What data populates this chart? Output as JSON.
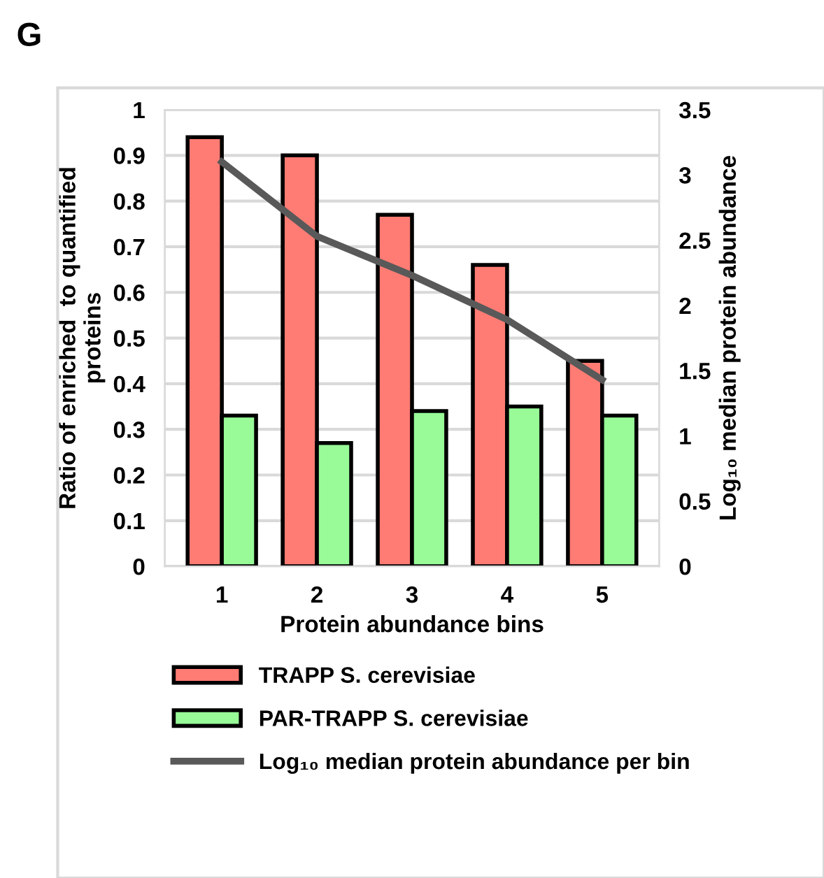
{
  "chart_data": {
    "type": "bar",
    "xlabel": "Protein abundance bins",
    "ylabel": "Ratio of enriched  to quantified\nproteins",
    "y2label": "Log₁₀ median protein abundance",
    "annotations": [
      "G"
    ],
    "categories": [
      "1",
      "2",
      "3",
      "4",
      "5"
    ],
    "series": [
      {
        "name": "TRAPP S. cerevisiae",
        "color": "#ff7c74",
        "values": [
          0.94,
          0.9,
          0.77,
          0.66,
          0.45
        ]
      },
      {
        "name": "PAR-TRAPP S. cerevisiae",
        "color": "#98fb98",
        "values": [
          0.33,
          0.27,
          0.34,
          0.35,
          0.33
        ]
      },
      {
        "name": "Log₁₀ median protein abundance per bin",
        "type": "line",
        "axis": "y2",
        "color": "#595959",
        "values": [
          3.1,
          2.53,
          2.23,
          1.89,
          1.43
        ]
      }
    ],
    "ylim": [
      0,
      1
    ],
    "yticks": [
      0,
      0.1,
      0.2,
      0.3,
      0.4,
      0.5,
      0.6,
      0.7,
      0.8,
      0.9,
      1
    ],
    "y2lim": [
      0,
      3.5
    ],
    "y2ticks": [
      0,
      0.5,
      1,
      1.5,
      2,
      2.5,
      3,
      3.5
    ],
    "grid": "y",
    "legend": "bottom"
  }
}
